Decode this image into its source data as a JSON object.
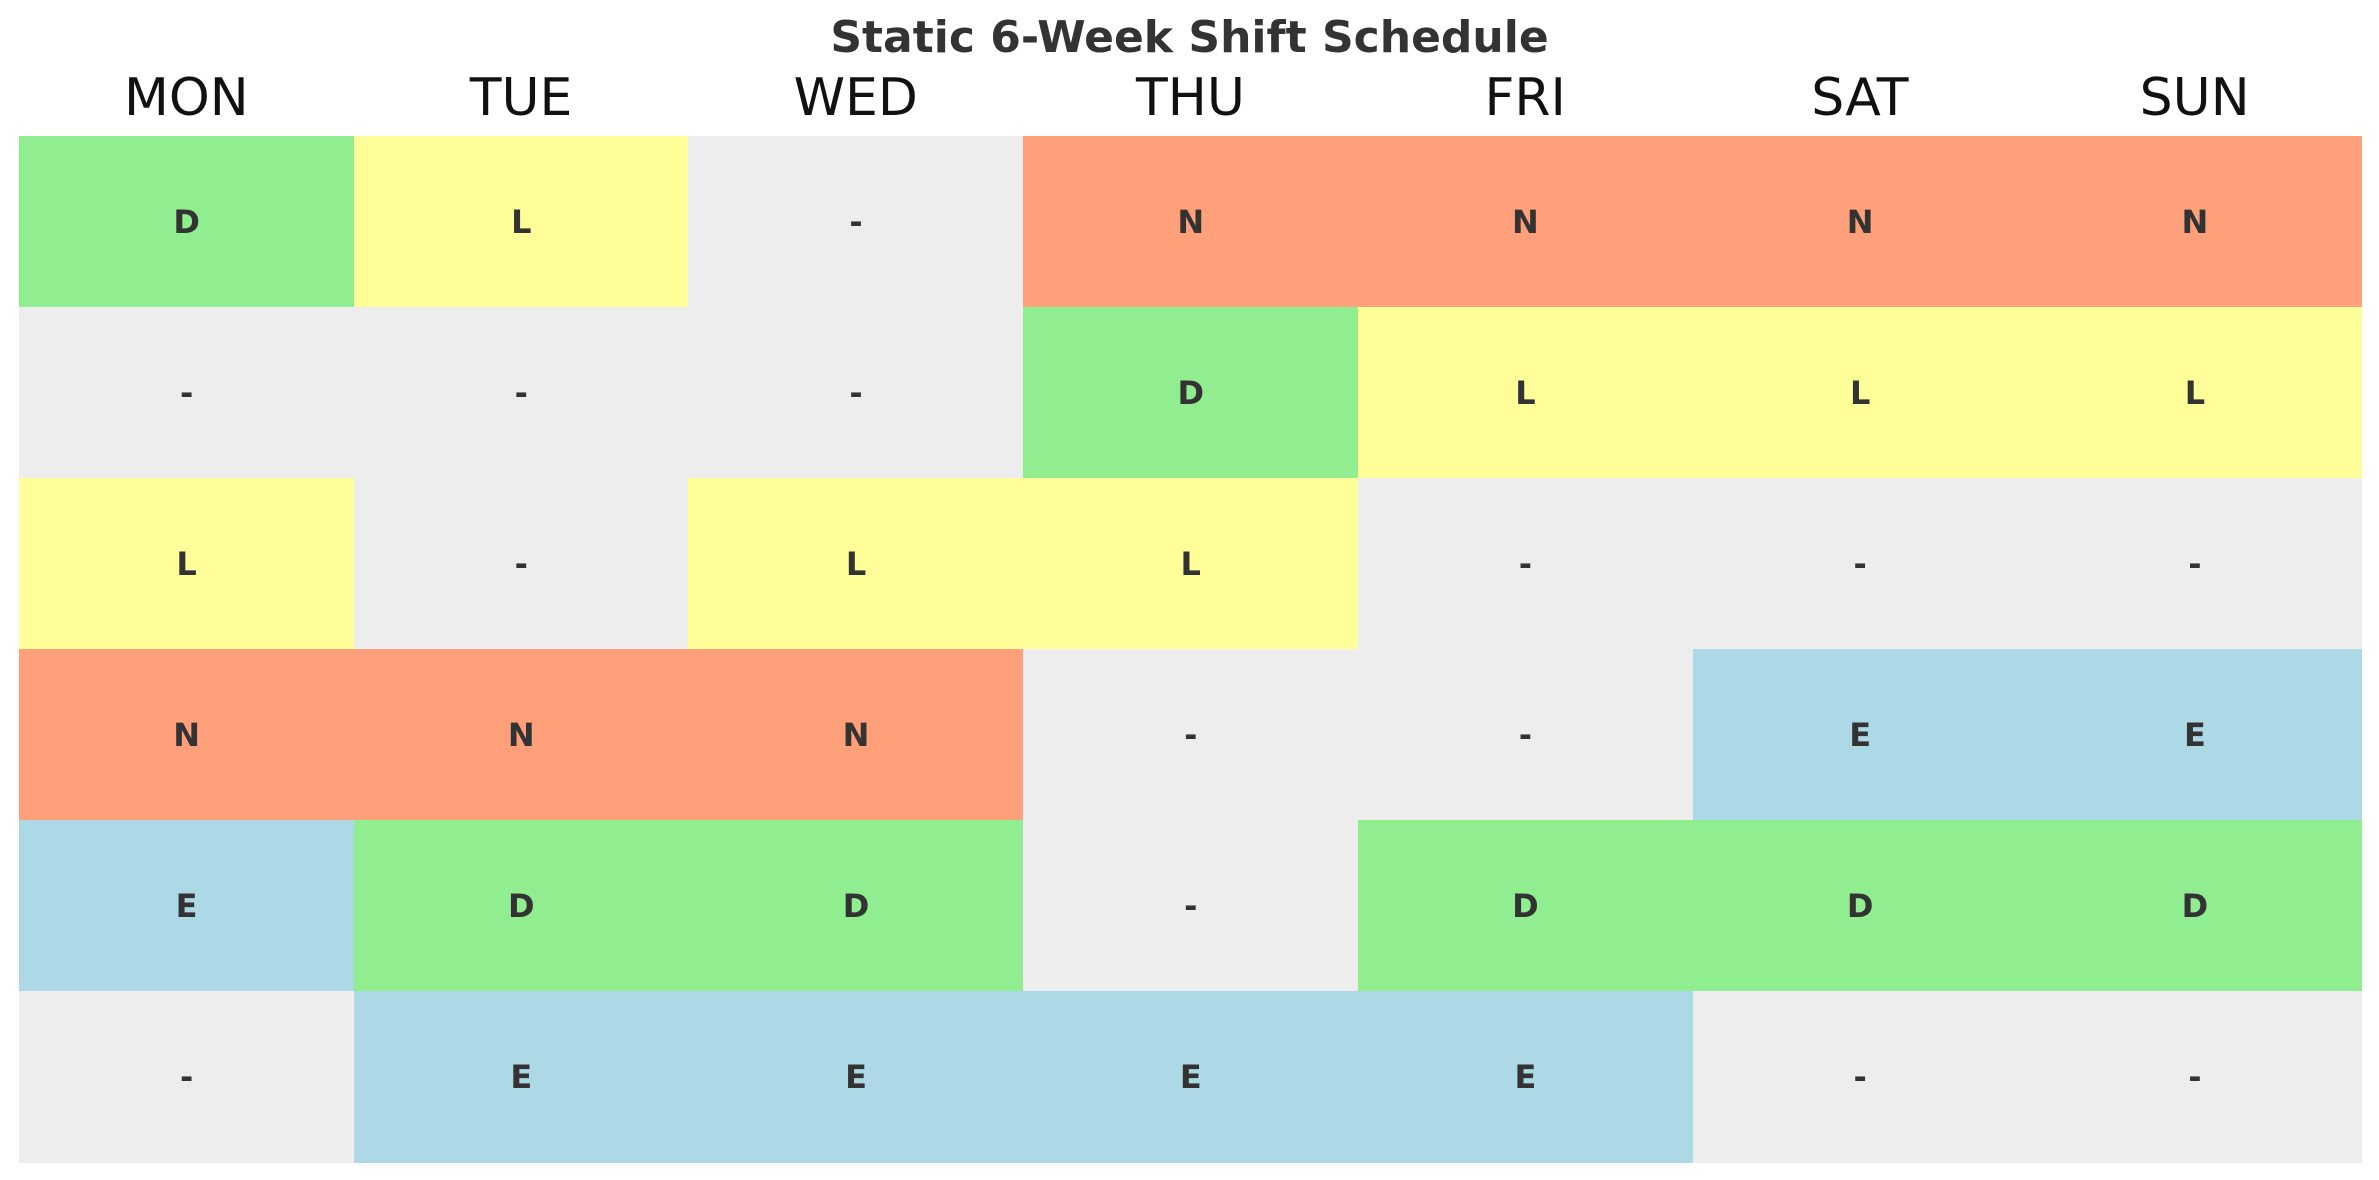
{
  "chart_data": {
    "type": "heatmap",
    "title": "Static 6-Week Shift Schedule",
    "columns": [
      "MON",
      "TUE",
      "WED",
      "THU",
      "FRI",
      "SAT",
      "SUN"
    ],
    "rows": [
      [
        "D",
        "L",
        "-",
        "N",
        "N",
        "N",
        "N"
      ],
      [
        "-",
        "-",
        "-",
        "D",
        "L",
        "L",
        "L"
      ],
      [
        "L",
        "-",
        "L",
        "L",
        "-",
        "-",
        "-"
      ],
      [
        "N",
        "N",
        "N",
        "-",
        "-",
        "E",
        "E"
      ],
      [
        "E",
        "D",
        "D",
        "-",
        "D",
        "D",
        "D"
      ],
      [
        "-",
        "E",
        "E",
        "E",
        "E",
        "-",
        "-"
      ]
    ],
    "shift_colors": {
      "D": "#90ee90",
      "L": "#ffff99",
      "N": "#ffa07a",
      "E": "#add8e6",
      "-": "#ededed"
    },
    "grid": false,
    "legend": "none"
  }
}
